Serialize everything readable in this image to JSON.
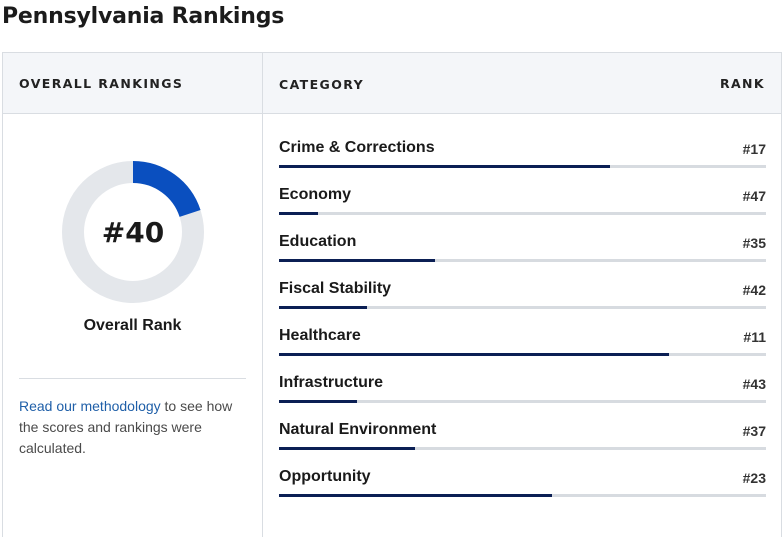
{
  "page": {
    "title": "Pennsylvania Rankings"
  },
  "header": {
    "overall": "OVERALL RANKINGS",
    "category": "CATEGORY",
    "rank": "RANK"
  },
  "overall": {
    "rank_text": "#40",
    "rank": 40,
    "total": 50,
    "fill_fraction": 0.2,
    "label": "Overall Rank"
  },
  "methodology": {
    "link_text": "Read our methodology",
    "rest_text": " to see how the scores and rankings were calculated."
  },
  "colors": {
    "donut_fill": "#0a4fbf",
    "donut_track": "#e4e7eb",
    "bar_fill": "#0b1f54",
    "bar_track": "#d7dbe0",
    "link": "#1f5fa8"
  },
  "categories": [
    {
      "name": "Crime & Corrections",
      "rank_text": "#17",
      "rank": 17,
      "fill": 0.68
    },
    {
      "name": "Economy",
      "rank_text": "#47",
      "rank": 47,
      "fill": 0.08
    },
    {
      "name": "Education",
      "rank_text": "#35",
      "rank": 35,
      "fill": 0.32
    },
    {
      "name": "Fiscal Stability",
      "rank_text": "#42",
      "rank": 42,
      "fill": 0.18
    },
    {
      "name": "Healthcare",
      "rank_text": "#11",
      "rank": 11,
      "fill": 0.8
    },
    {
      "name": "Infrastructure",
      "rank_text": "#43",
      "rank": 43,
      "fill": 0.16
    },
    {
      "name": "Natural Environment",
      "rank_text": "#37",
      "rank": 37,
      "fill": 0.28
    },
    {
      "name": "Opportunity",
      "rank_text": "#23",
      "rank": 23,
      "fill": 0.56
    }
  ]
}
